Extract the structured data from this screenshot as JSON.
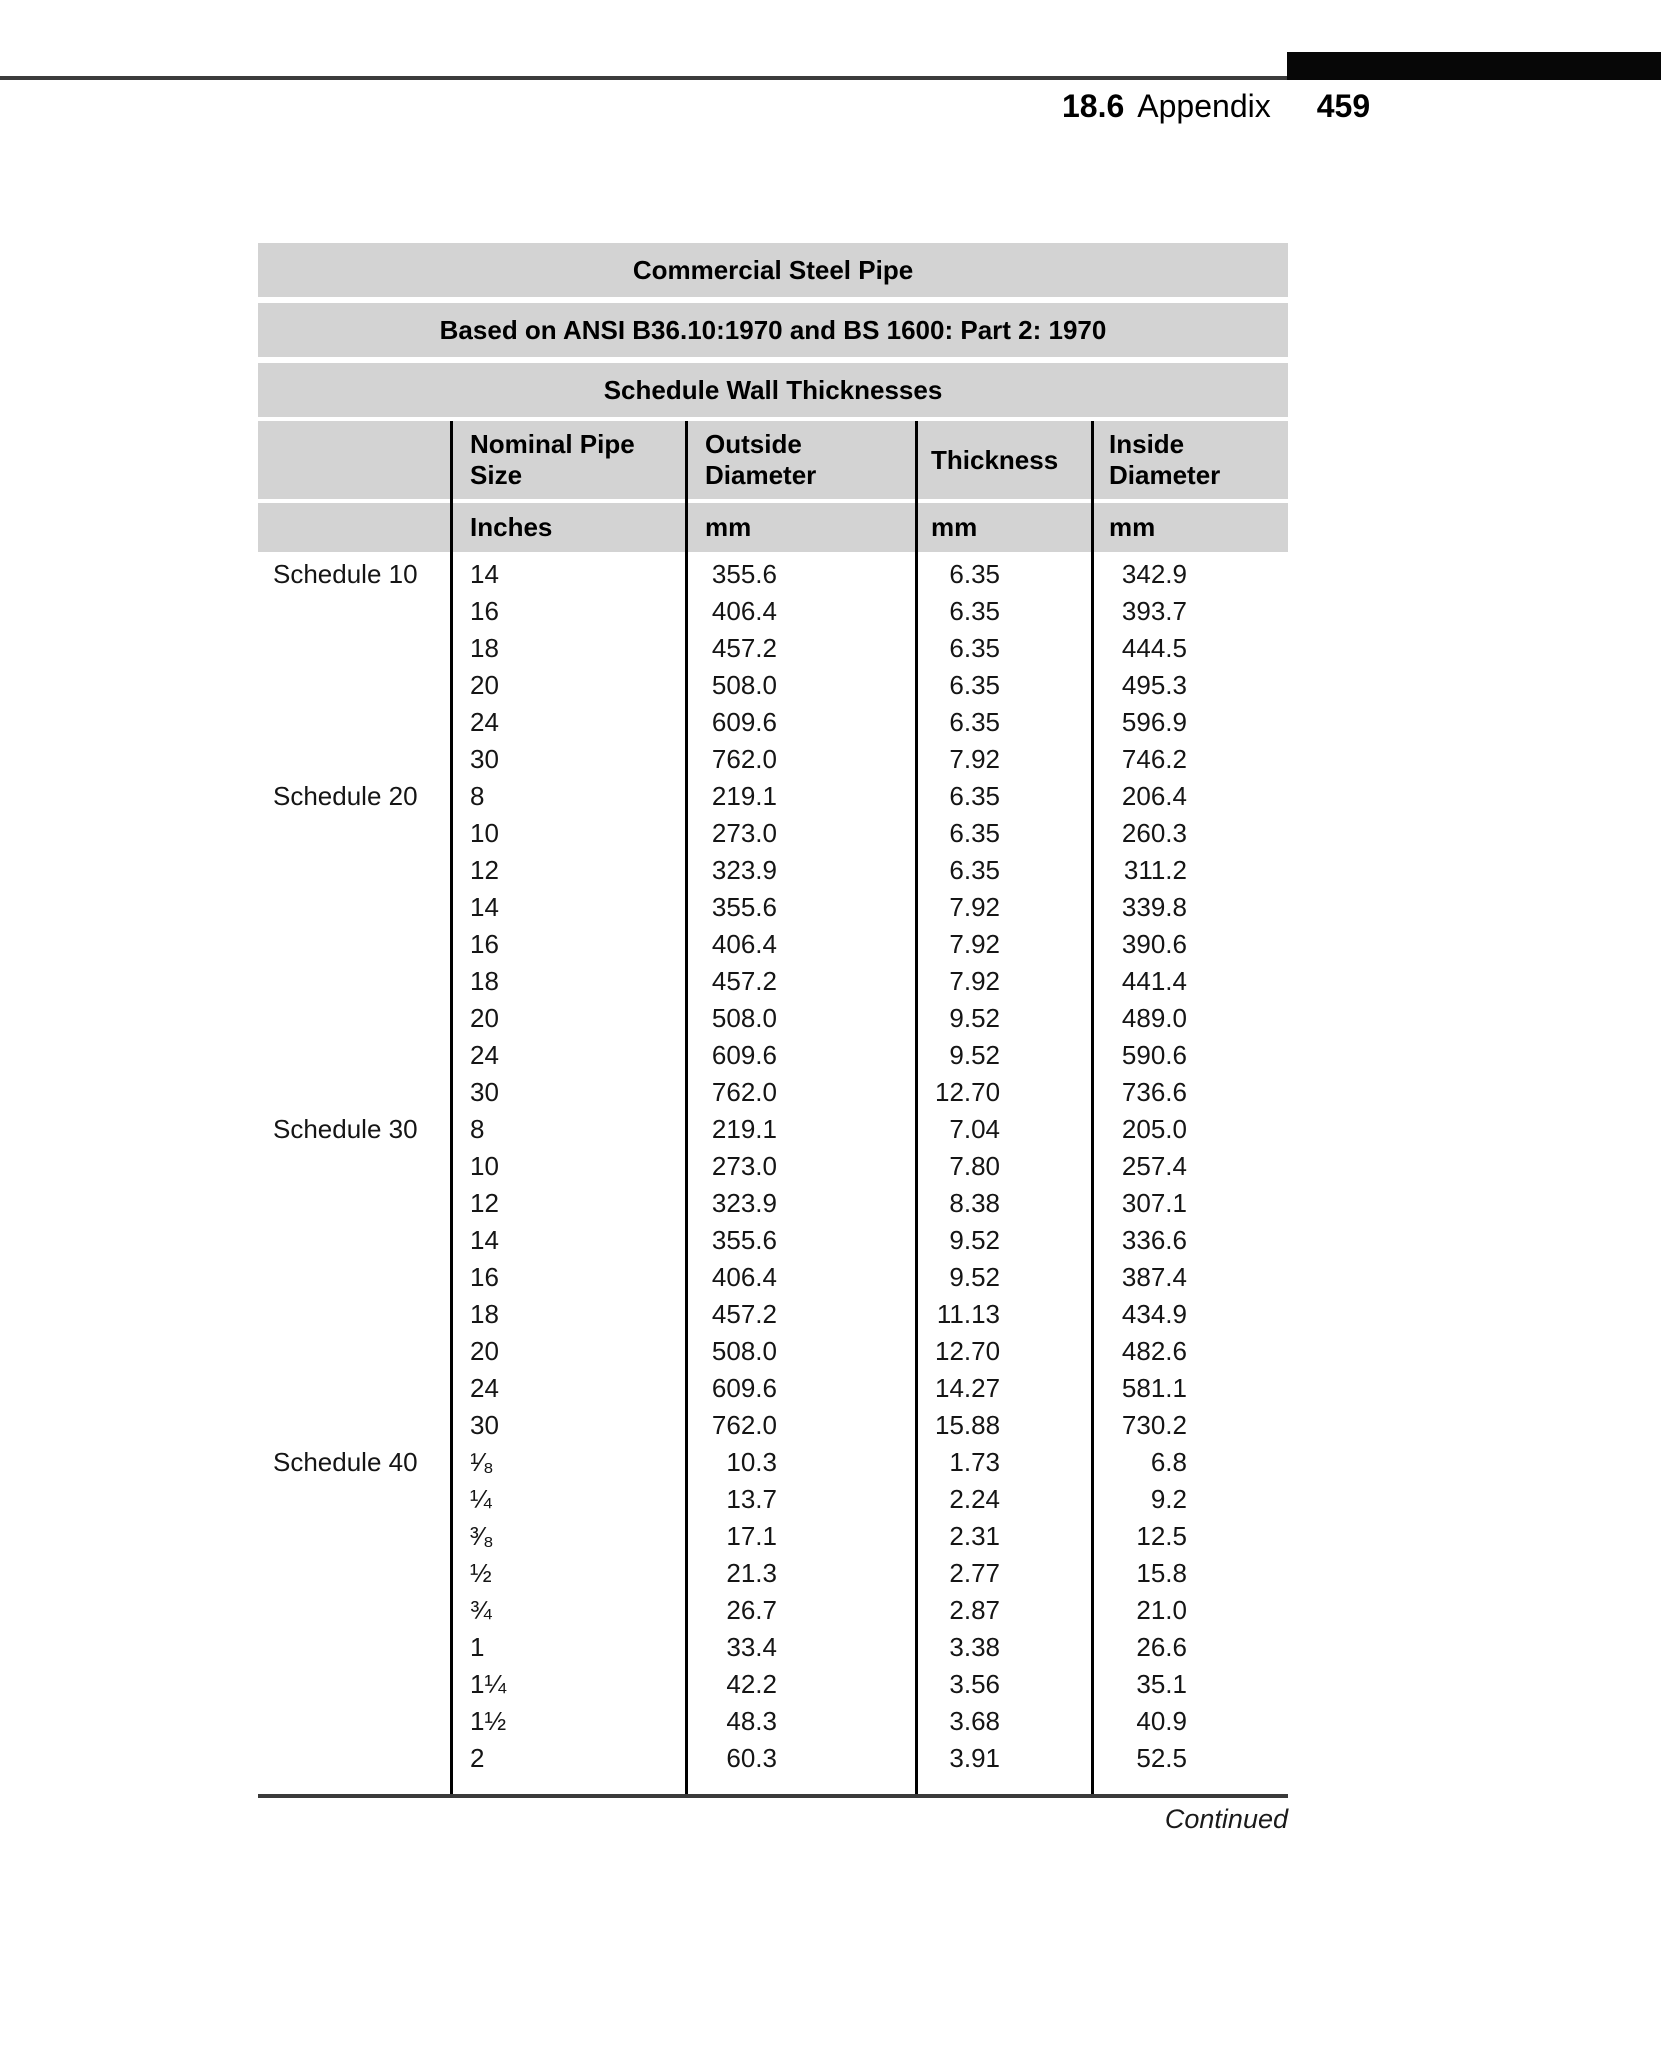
{
  "header": {
    "section_number": "18.6",
    "section_title": "Appendix",
    "page_number": "459"
  },
  "table": {
    "title": "Commercial Steel Pipe",
    "subtitle": "Based on ANSI B36.10:1970 and BS 1600: Part 2: 1970",
    "section_header": "Schedule Wall Thicknesses",
    "columns": [
      {
        "label": "",
        "unit": ""
      },
      {
        "label": "Nominal Pipe Size",
        "unit": "Inches"
      },
      {
        "label": "Outside Diameter",
        "unit": "mm"
      },
      {
        "label": "Thickness",
        "unit": "mm"
      },
      {
        "label": "Inside Diameter",
        "unit": "mm"
      }
    ],
    "groups": [
      {
        "schedule": "Schedule 10",
        "rows": [
          [
            "14",
            "355.6",
            "6.35",
            "342.9"
          ],
          [
            "16",
            "406.4",
            "6.35",
            "393.7"
          ],
          [
            "18",
            "457.2",
            "6.35",
            "444.5"
          ],
          [
            "20",
            "508.0",
            "6.35",
            "495.3"
          ],
          [
            "24",
            "609.6",
            "6.35",
            "596.9"
          ],
          [
            "30",
            "762.0",
            "7.92",
            "746.2"
          ]
        ]
      },
      {
        "schedule": "Schedule 20",
        "rows": [
          [
            "8",
            "219.1",
            "6.35",
            "206.4"
          ],
          [
            "10",
            "273.0",
            "6.35",
            "260.3"
          ],
          [
            "12",
            "323.9",
            "6.35",
            "311.2"
          ],
          [
            "14",
            "355.6",
            "7.92",
            "339.8"
          ],
          [
            "16",
            "406.4",
            "7.92",
            "390.6"
          ],
          [
            "18",
            "457.2",
            "7.92",
            "441.4"
          ],
          [
            "20",
            "508.0",
            "9.52",
            "489.0"
          ],
          [
            "24",
            "609.6",
            "9.52",
            "590.6"
          ],
          [
            "30",
            "762.0",
            "12.70",
            "736.6"
          ]
        ]
      },
      {
        "schedule": "Schedule 30",
        "rows": [
          [
            "8",
            "219.1",
            "7.04",
            "205.0"
          ],
          [
            "10",
            "273.0",
            "7.80",
            "257.4"
          ],
          [
            "12",
            "323.9",
            "8.38",
            "307.1"
          ],
          [
            "14",
            "355.6",
            "9.52",
            "336.6"
          ],
          [
            "16",
            "406.4",
            "9.52",
            "387.4"
          ],
          [
            "18",
            "457.2",
            "11.13",
            "434.9"
          ],
          [
            "20",
            "508.0",
            "12.70",
            "482.6"
          ],
          [
            "24",
            "609.6",
            "14.27",
            "581.1"
          ],
          [
            "30",
            "762.0",
            "15.88",
            "730.2"
          ]
        ]
      },
      {
        "schedule": "Schedule 40",
        "rows": [
          [
            "¹⁄₈",
            "10.3",
            "1.73",
            "6.8"
          ],
          [
            "¼",
            "13.7",
            "2.24",
            "9.2"
          ],
          [
            "³⁄₈",
            "17.1",
            "2.31",
            "12.5"
          ],
          [
            "½",
            "21.3",
            "2.77",
            "15.8"
          ],
          [
            "¾",
            "26.7",
            "2.87",
            "21.0"
          ],
          [
            "1",
            "33.4",
            "3.38",
            "26.6"
          ],
          [
            "1¼",
            "42.2",
            "3.56",
            "35.1"
          ],
          [
            "1½",
            "48.3",
            "3.68",
            "40.9"
          ],
          [
            "2",
            "60.3",
            "3.91",
            "52.5"
          ]
        ]
      }
    ]
  },
  "footer": {
    "continued": "Continued"
  },
  "colors": {
    "banner_gray": "#d3d3d3",
    "separator_black": "#000000",
    "rule_dark": "#3a3a3a"
  }
}
